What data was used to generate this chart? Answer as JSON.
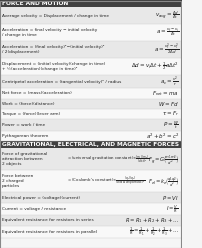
{
  "title1": "FORCE AND MOTION",
  "title2": "GRAVITATIONAL, ELECTRICAL, AND MAGNETIC FORCES",
  "bg_color": "#f0f0f0",
  "header1_bg": "#404040",
  "header2_bg": "#404040",
  "section1_rows": [
    {
      "label": "Average velocity = Displacement\n                            change in time",
      "formula": "$v_{avg} = \\frac{\\Delta d}{\\Delta t}$"
    },
    {
      "label": "Acceleration = final velocity − initial velocity\n                          change in time",
      "formula": "$a = \\frac{v_f - v_i}{\\Delta t}$"
    },
    {
      "label": "Acceleration = (final velocity)² − (initial velocity)²\n                          2(displacement)",
      "formula": "$a = \\frac{v_f^2 - v_i^2}{2\\Delta d}$"
    },
    {
      "label": "Displacement = $\\left(\\frac{\\mathrm{initial}}{\\mathrm{velocity}}\\right)\\!\\left(\\frac{\\mathrm{change}}{\\mathrm{in\\ time}}\\right)$+$\\frac{1}{2}$(acceleration)$\\left(\\frac{\\mathrm{change}}{\\mathrm{in\\ time}}\\right)^{\\!2}$",
      "formula": "$\\Delta d = v_i \\Delta t + \\frac{1}{2}a\\Delta t^2$"
    },
    {
      "label": "Centripetal acceleration = (tangential velocity)²\n                                             radius",
      "formula": "$a_c = \\frac{v^2}{r}$"
    },
    {
      "label": "Net force = (mass)(acceleration)",
      "formula": "$F_{net} = ma$"
    },
    {
      "label": "Work = (force)(distance)",
      "formula": "$W = Fd$"
    },
    {
      "label": "Torque = (force)(lever arm)",
      "formula": "$\\tau = F_r$"
    },
    {
      "label": "Power = work\n              time",
      "formula": "$P = \\frac{W}{t}$"
    },
    {
      "label": "Pythagorean theorem",
      "formula": "$a^2 + b^2 = c^2$"
    }
  ],
  "section2_rows": [
    {
      "label": "Force of gravitational\nattraction between\n2 objects",
      "middle": "= $\\left(\\frac{\\mathrm{universal}}{\\mathrm{gravitation}}{\\mathrm{constant}}\\right)\\!\\left(\\frac{\\left(\\frac{\\mathrm{mass\\ of}}{\\mathrm{1st\\ object}}\\right)\\!\\left(\\frac{\\mathrm{mass\\ of}}{\\mathrm{2nd\\ object}}\\right)}{\\left(\\frac{\\mathrm{distance\\ between}}{\\mathrm{centers\\ of\\ objects}}\\right)^{\\!2}}\\right)$",
      "formula": "$F_g = G\\!\\left(\\frac{m_1 m_2}{d^2}\\right)$"
    },
    {
      "label": "Force between\n2 charged\nparticles",
      "middle": "= $\\left(\\frac{\\mathrm{Coulomb's}}{\\mathrm{constant}}\\right)\\!\\left(\\frac{\\left(\\frac{\\mathrm{charge\\ of}}{\\mathrm{1st\\ particle}}\\right)\\!\\left(\\frac{\\mathrm{charge\\ of}}{\\mathrm{2nd\\ particle}}\\right)}{\\left(\\mathrm{distance\\ between\\ particles}\\right)^{\\!2}}\\right)$",
      "formula": "$F_{electric} = k_e\\!\\left(\\frac{q_1 q_2}{d^2}\\right)$"
    },
    {
      "label": "Electrical power = (voltage)(current)",
      "formula": "$P = VI$"
    },
    {
      "label": "Current = voltage\n               resistance",
      "formula": "$I = \\frac{V}{R}$"
    },
    {
      "label": "Equivalent resistance for resistors in series",
      "formula": "$R = R_1 + R_2 + R_3 + \\ldots$"
    },
    {
      "label": "Equivalent resistance for resistors in parallel",
      "formula": "$\\frac{1}{R} = \\frac{1}{R_1} + \\frac{1}{R_2} + \\frac{1}{R_3} + \\ldots$"
    }
  ]
}
